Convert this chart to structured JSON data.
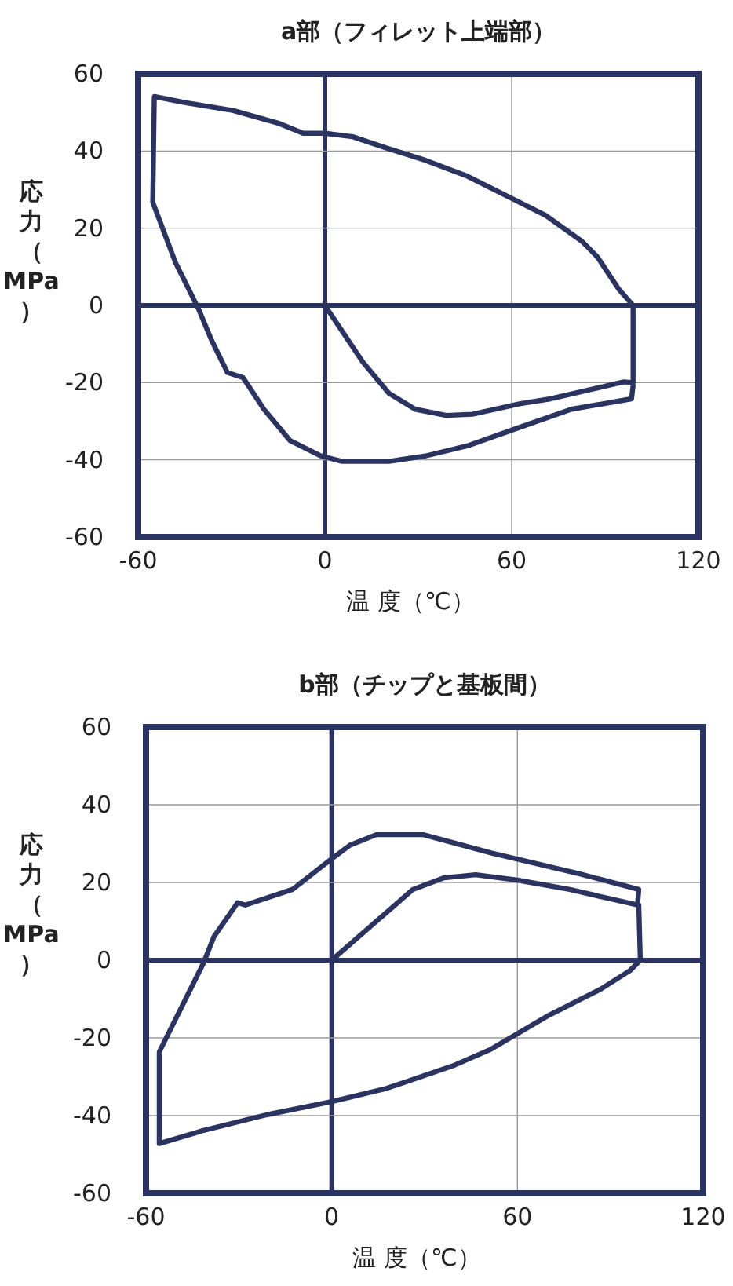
{
  "chart_data": [
    {
      "type": "line",
      "title": "a部（フィレット上端部）",
      "xlabel": "温 度（℃）",
      "ylabel": "応力（MPa）",
      "xlim": [
        -60,
        120
      ],
      "ylim": [
        -60,
        60
      ],
      "xticks": [
        -60,
        0,
        60,
        120
      ],
      "yticks": [
        -60,
        -40,
        -20,
        0,
        20,
        40,
        60
      ],
      "grid": true,
      "line_style": "solid",
      "series": [
        {
          "color": "#2b3460",
          "x": [
            0,
            12.2,
            20.6,
            29,
            39,
            47.4,
            62.5,
            72.5,
            87.6,
            96,
            99,
            99,
            94.3,
            87.6,
            82.6,
            70.9,
            59.1,
            45.7,
            32.3,
            18.9,
            8.9,
            0,
            -7,
            -14.6,
            -29.6,
            -44.7,
            -54.8,
            -55.3,
            -48,
            -40.5,
            -36.3,
            -31.3,
            -26.3,
            -19.6,
            -11.2,
            -1.2,
            5.5,
            20.6,
            32.3,
            45.7,
            62.5,
            79.2,
            98.5,
            99
          ],
          "values": [
            0,
            -14.7,
            -22.8,
            -26.9,
            -28.5,
            -28.2,
            -25.5,
            -24.2,
            -21.4,
            -19.8,
            -20,
            0,
            4.3,
            12.5,
            16.6,
            23.3,
            28.1,
            33.5,
            37.6,
            41,
            43.7,
            44.6,
            44.6,
            47.1,
            50.5,
            52.5,
            54.1,
            26.7,
            11.1,
            -1.1,
            -9.2,
            -17.4,
            -18.7,
            -26.9,
            -35,
            -39,
            -40.4,
            -40.4,
            -39,
            -36.4,
            -31.6,
            -26.9,
            -24.2,
            -20.8
          ]
        }
      ]
    },
    {
      "type": "line",
      "title": "b部（チップと基板間）",
      "xlabel": "温 度（℃）",
      "ylabel": "応力（MPa）",
      "xlim": [
        -60,
        120
      ],
      "ylim": [
        -60,
        60
      ],
      "xticks": [
        -60,
        0,
        60,
        120
      ],
      "yticks": [
        -60,
        -40,
        -20,
        0,
        20,
        40,
        60
      ],
      "grid": true,
      "line_style": "solid",
      "series": [
        {
          "color": "#2b3460",
          "x": [
            0,
            12.7,
            26.2,
            36.3,
            46.5,
            60,
            76.9,
            98.8,
            99.2,
            80.2,
            51.5,
            29.6,
            14.4,
            5.9,
            -0.8,
            -12.7,
            -27.9,
            -30.4,
            -38,
            -41.4,
            -55.7,
            -55.7,
            -41.4,
            -21.1,
            0,
            17.7,
            39.7,
            51.5,
            70.1,
            87,
            96.3,
            99.7,
            99.2
          ],
          "values": [
            0,
            8.8,
            18.2,
            21.2,
            22,
            20.6,
            18.2,
            14.2,
            18.2,
            22.2,
            27.6,
            32.3,
            32.3,
            29.6,
            25.6,
            18.2,
            14.2,
            14.8,
            6.1,
            -0.7,
            -23.6,
            -47.2,
            -43.8,
            -39.8,
            -36.4,
            -33,
            -27,
            -22.9,
            -14.2,
            -7.4,
            -2.7,
            0,
            14.2
          ]
        }
      ]
    }
  ]
}
